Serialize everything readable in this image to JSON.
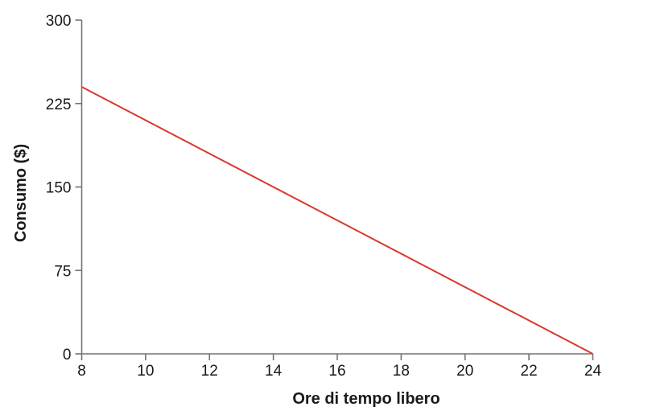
{
  "chart_data": {
    "type": "line",
    "title": "",
    "xlabel": "Ore di tempo libero",
    "ylabel": "Consumo ($)",
    "xlim": [
      8,
      24
    ],
    "ylim": [
      0,
      300
    ],
    "xticks": [
      8,
      10,
      12,
      14,
      16,
      18,
      20,
      22,
      24
    ],
    "yticks": [
      0,
      75,
      150,
      225,
      300
    ],
    "grid": false,
    "legend": "none",
    "series": [
      {
        "name": "line",
        "color": "#d9382c",
        "points": [
          [
            8,
            240
          ],
          [
            24,
            0
          ]
        ]
      }
    ],
    "colors": {
      "axis": "#747474",
      "tick_text": "#1a1a1a",
      "title_text": "#1a1a1a",
      "background": "#ffffff"
    }
  }
}
